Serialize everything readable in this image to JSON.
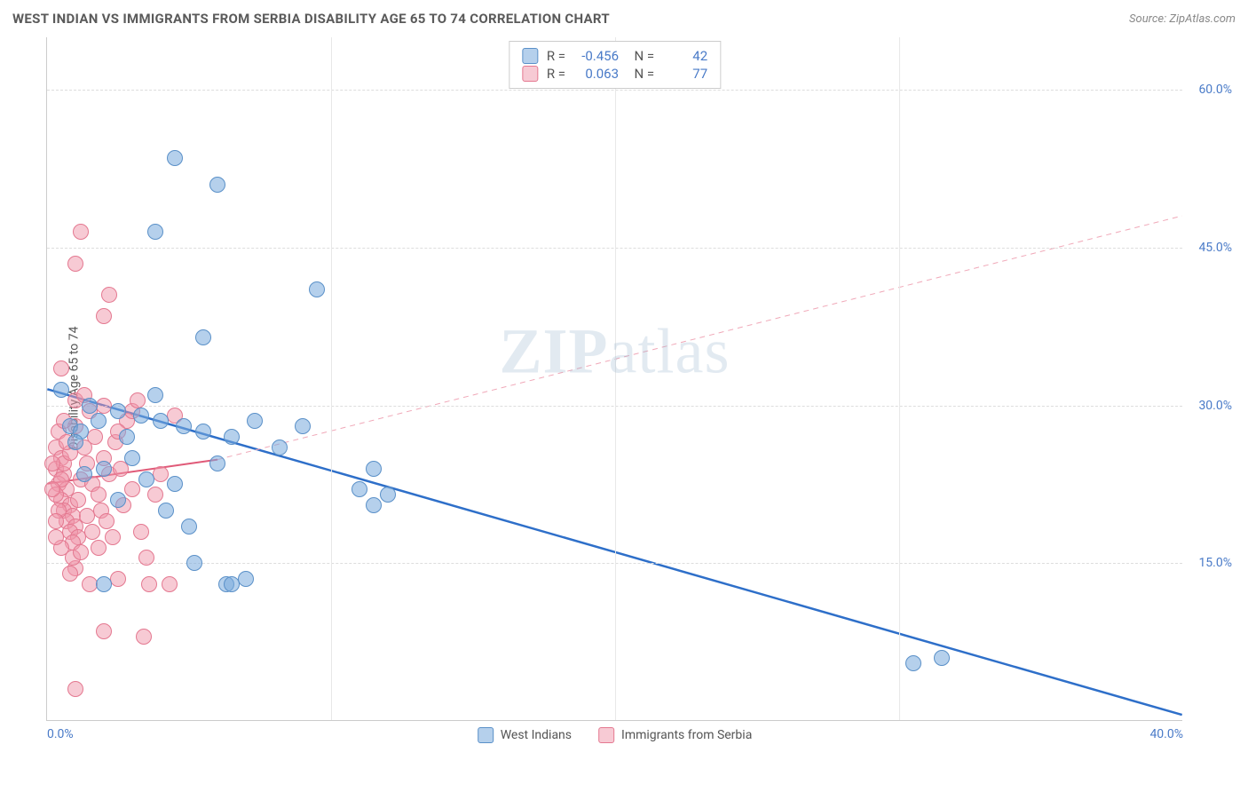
{
  "header": {
    "title": "WEST INDIAN VS IMMIGRANTS FROM SERBIA DISABILITY AGE 65 TO 74 CORRELATION CHART",
    "source": "Source: ZipAtlas.com"
  },
  "watermark": {
    "zip": "ZIP",
    "atlas": "atlas"
  },
  "chart": {
    "type": "scatter",
    "y_axis_label": "Disability Age 65 to 74",
    "background_color": "#ffffff",
    "grid_color": "#dddddd",
    "xlim": [
      0,
      40
    ],
    "ylim": [
      0,
      65
    ],
    "x_ticks": [
      {
        "value": 0,
        "label": "0.0%",
        "align": "left"
      },
      {
        "value": 40,
        "label": "40.0%",
        "align": "right"
      }
    ],
    "y_ticks": [
      {
        "value": 15,
        "label": "15.0%"
      },
      {
        "value": 30,
        "label": "30.0%"
      },
      {
        "value": 45,
        "label": "45.0%"
      },
      {
        "value": 60,
        "label": "60.0%"
      }
    ],
    "series": [
      {
        "name": "West Indians",
        "color_fill": "rgba(120,170,220,0.55)",
        "color_border": "#5a90c8",
        "trend": {
          "x1": 0,
          "y1": 31.5,
          "x2": 40,
          "y2": 0.5,
          "color": "#2e6fc9",
          "width": 2.5,
          "dash": "none"
        },
        "R": "-0.456",
        "N": "42",
        "points": [
          [
            4.5,
            53.5
          ],
          [
            6.0,
            51.0
          ],
          [
            3.8,
            46.5
          ],
          [
            9.5,
            41.0
          ],
          [
            5.5,
            36.5
          ],
          [
            0.8,
            28.0
          ],
          [
            1.2,
            27.5
          ],
          [
            1.8,
            28.5
          ],
          [
            2.5,
            29.5
          ],
          [
            3.3,
            29.0
          ],
          [
            4.0,
            28.5
          ],
          [
            4.8,
            28.0
          ],
          [
            5.5,
            27.5
          ],
          [
            6.5,
            27.0
          ],
          [
            7.3,
            28.5
          ],
          [
            9.0,
            28.0
          ],
          [
            11.5,
            24.0
          ],
          [
            11.0,
            22.0
          ],
          [
            11.5,
            20.5
          ],
          [
            3.0,
            25.0
          ],
          [
            2.0,
            24.0
          ],
          [
            4.5,
            22.5
          ],
          [
            2.5,
            21.0
          ],
          [
            5.0,
            18.5
          ],
          [
            5.2,
            15.0
          ],
          [
            6.3,
            13.0
          ],
          [
            6.5,
            13.0
          ],
          [
            7.0,
            13.5
          ],
          [
            2.0,
            13.0
          ],
          [
            30.5,
            5.5
          ],
          [
            31.5,
            6.0
          ],
          [
            0.5,
            31.5
          ],
          [
            1.0,
            26.5
          ],
          [
            1.5,
            30.0
          ],
          [
            3.8,
            31.0
          ],
          [
            6.0,
            24.5
          ],
          [
            8.2,
            26.0
          ],
          [
            12.0,
            21.5
          ],
          [
            4.2,
            20.0
          ],
          [
            1.3,
            23.5
          ],
          [
            2.8,
            27.0
          ],
          [
            3.5,
            23.0
          ]
        ]
      },
      {
        "name": "Immigrants from Serbia",
        "color_fill": "rgba(240,150,170,0.5)",
        "color_border": "#e47890",
        "trend": {
          "x1": 0,
          "y1": 22.5,
          "x2": 6.0,
          "y2": 24.8,
          "color": "#e05a78",
          "width": 2,
          "dash": "none"
        },
        "extrapolate": {
          "x1": 6.0,
          "y1": 24.8,
          "x2": 40,
          "y2": 48.0,
          "color": "#f0a8b8",
          "width": 1,
          "dash": "6,5"
        },
        "R": "0.063",
        "N": "77",
        "points": [
          [
            1.2,
            46.5
          ],
          [
            1.0,
            43.5
          ],
          [
            2.2,
            40.5
          ],
          [
            2.0,
            38.5
          ],
          [
            0.5,
            33.5
          ],
          [
            0.3,
            26.0
          ],
          [
            0.5,
            25.0
          ],
          [
            0.3,
            24.0
          ],
          [
            0.6,
            23.5
          ],
          [
            0.4,
            22.5
          ],
          [
            0.7,
            22.0
          ],
          [
            0.5,
            21.0
          ],
          [
            0.8,
            20.5
          ],
          [
            0.6,
            20.0
          ],
          [
            0.9,
            19.5
          ],
          [
            0.7,
            19.0
          ],
          [
            1.0,
            18.5
          ],
          [
            0.8,
            18.0
          ],
          [
            1.1,
            17.5
          ],
          [
            0.9,
            17.0
          ],
          [
            1.2,
            23.0
          ],
          [
            1.4,
            24.5
          ],
          [
            1.6,
            22.5
          ],
          [
            1.8,
            21.5
          ],
          [
            2.0,
            25.0
          ],
          [
            2.2,
            23.5
          ],
          [
            2.4,
            26.5
          ],
          [
            2.6,
            24.0
          ],
          [
            1.0,
            28.0
          ],
          [
            1.5,
            29.5
          ],
          [
            2.8,
            28.5
          ],
          [
            3.0,
            22.0
          ],
          [
            3.0,
            29.5
          ],
          [
            3.3,
            18.0
          ],
          [
            3.2,
            30.5
          ],
          [
            3.6,
            13.0
          ],
          [
            3.5,
            15.5
          ],
          [
            2.5,
            13.5
          ],
          [
            2.0,
            8.5
          ],
          [
            3.4,
            8.0
          ],
          [
            1.0,
            14.5
          ],
          [
            1.5,
            13.0
          ],
          [
            4.3,
            13.0
          ],
          [
            1.0,
            3.0
          ],
          [
            4.5,
            29.0
          ],
          [
            0.4,
            27.5
          ],
          [
            0.3,
            21.5
          ],
          [
            0.5,
            23.0
          ],
          [
            0.6,
            24.5
          ],
          [
            0.8,
            25.5
          ],
          [
            1.3,
            26.0
          ],
          [
            1.7,
            27.0
          ],
          [
            0.2,
            22.0
          ],
          [
            0.4,
            20.0
          ],
          [
            0.3,
            19.0
          ],
          [
            1.9,
            20.0
          ],
          [
            2.1,
            19.0
          ],
          [
            0.7,
            26.5
          ],
          [
            1.1,
            21.0
          ],
          [
            1.4,
            19.5
          ],
          [
            1.6,
            18.0
          ],
          [
            0.5,
            16.5
          ],
          [
            0.9,
            15.5
          ],
          [
            1.2,
            16.0
          ],
          [
            1.8,
            16.5
          ],
          [
            2.3,
            17.5
          ],
          [
            2.7,
            20.5
          ],
          [
            0.2,
            24.5
          ],
          [
            0.6,
            28.5
          ],
          [
            1.0,
            30.5
          ],
          [
            1.3,
            31.0
          ],
          [
            2.0,
            30.0
          ],
          [
            2.5,
            27.5
          ],
          [
            0.3,
            17.5
          ],
          [
            0.8,
            14.0
          ],
          [
            3.8,
            21.5
          ],
          [
            4.0,
            23.5
          ]
        ]
      }
    ],
    "legend_bottom": [
      {
        "label": "West Indians",
        "swatch": "blue"
      },
      {
        "label": "Immigrants from Serbia",
        "swatch": "pink"
      }
    ]
  }
}
